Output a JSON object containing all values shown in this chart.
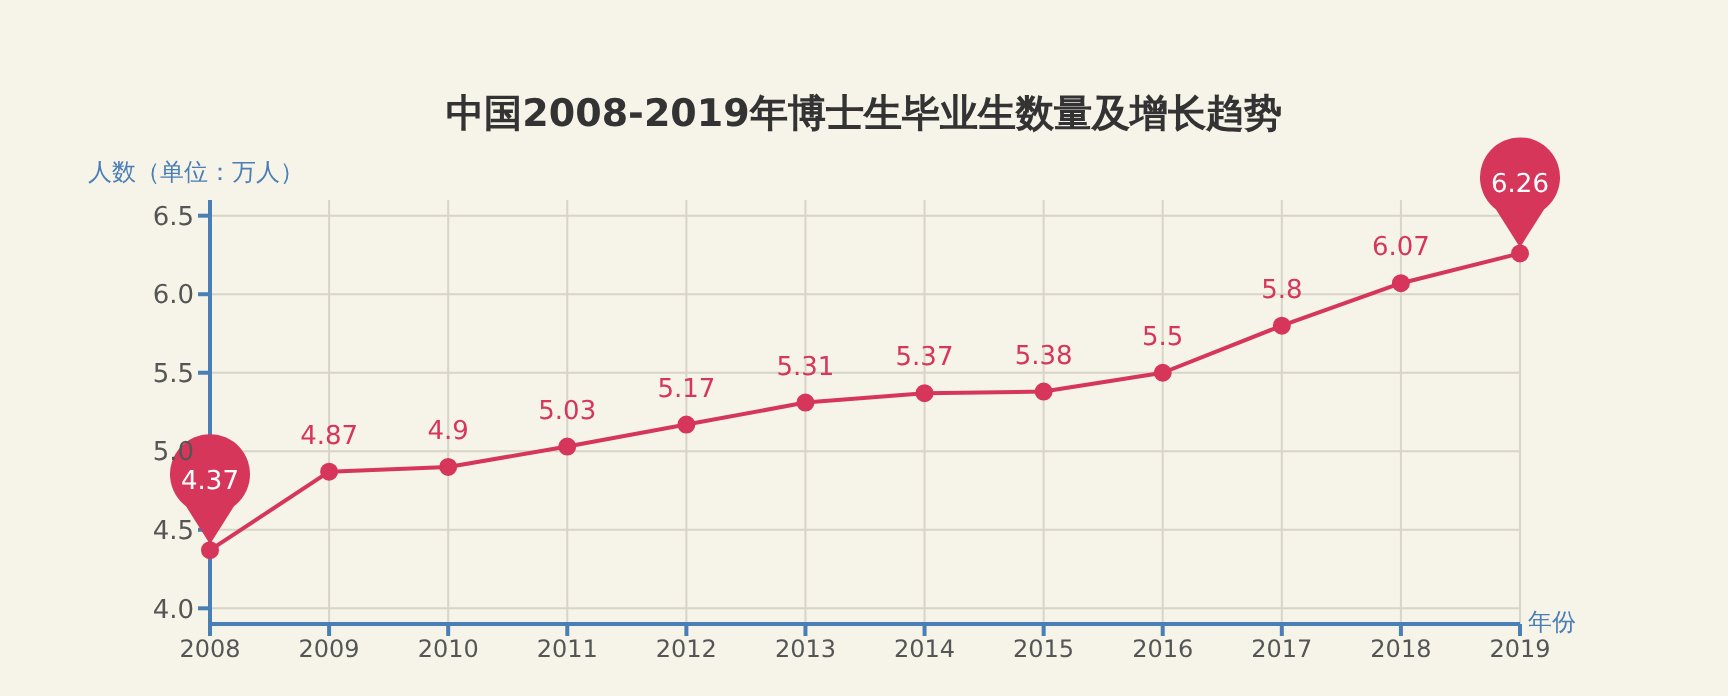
{
  "chart_data": {
    "type": "line",
    "title": "中国2008-2019年博士生毕业生数量及增长趋势",
    "xlabel": "年份",
    "ylabel": "人数（单位：万人）",
    "categories": [
      "2008",
      "2009",
      "2010",
      "2011",
      "2012",
      "2013",
      "2014",
      "2015",
      "2016",
      "2017",
      "2018",
      "2019"
    ],
    "series": [
      {
        "color": "#d6365a",
        "values": [
          4.37,
          4.87,
          4.9,
          5.03,
          5.17,
          5.31,
          5.37,
          5.38,
          5.5,
          5.8,
          6.07,
          6.26
        ]
      }
    ],
    "ylim": [
      3.9,
      6.6
    ],
    "yticks": [
      {
        "value": 4,
        "label": "4.0"
      },
      4.5,
      {
        "value": 5,
        "label": "5.0"
      },
      5.5,
      {
        "value": 6,
        "label": "6.0"
      },
      6.5
    ],
    "grid": true,
    "marker": "circle",
    "line_style": "solid",
    "data_labels": true,
    "legend": false
  }
}
